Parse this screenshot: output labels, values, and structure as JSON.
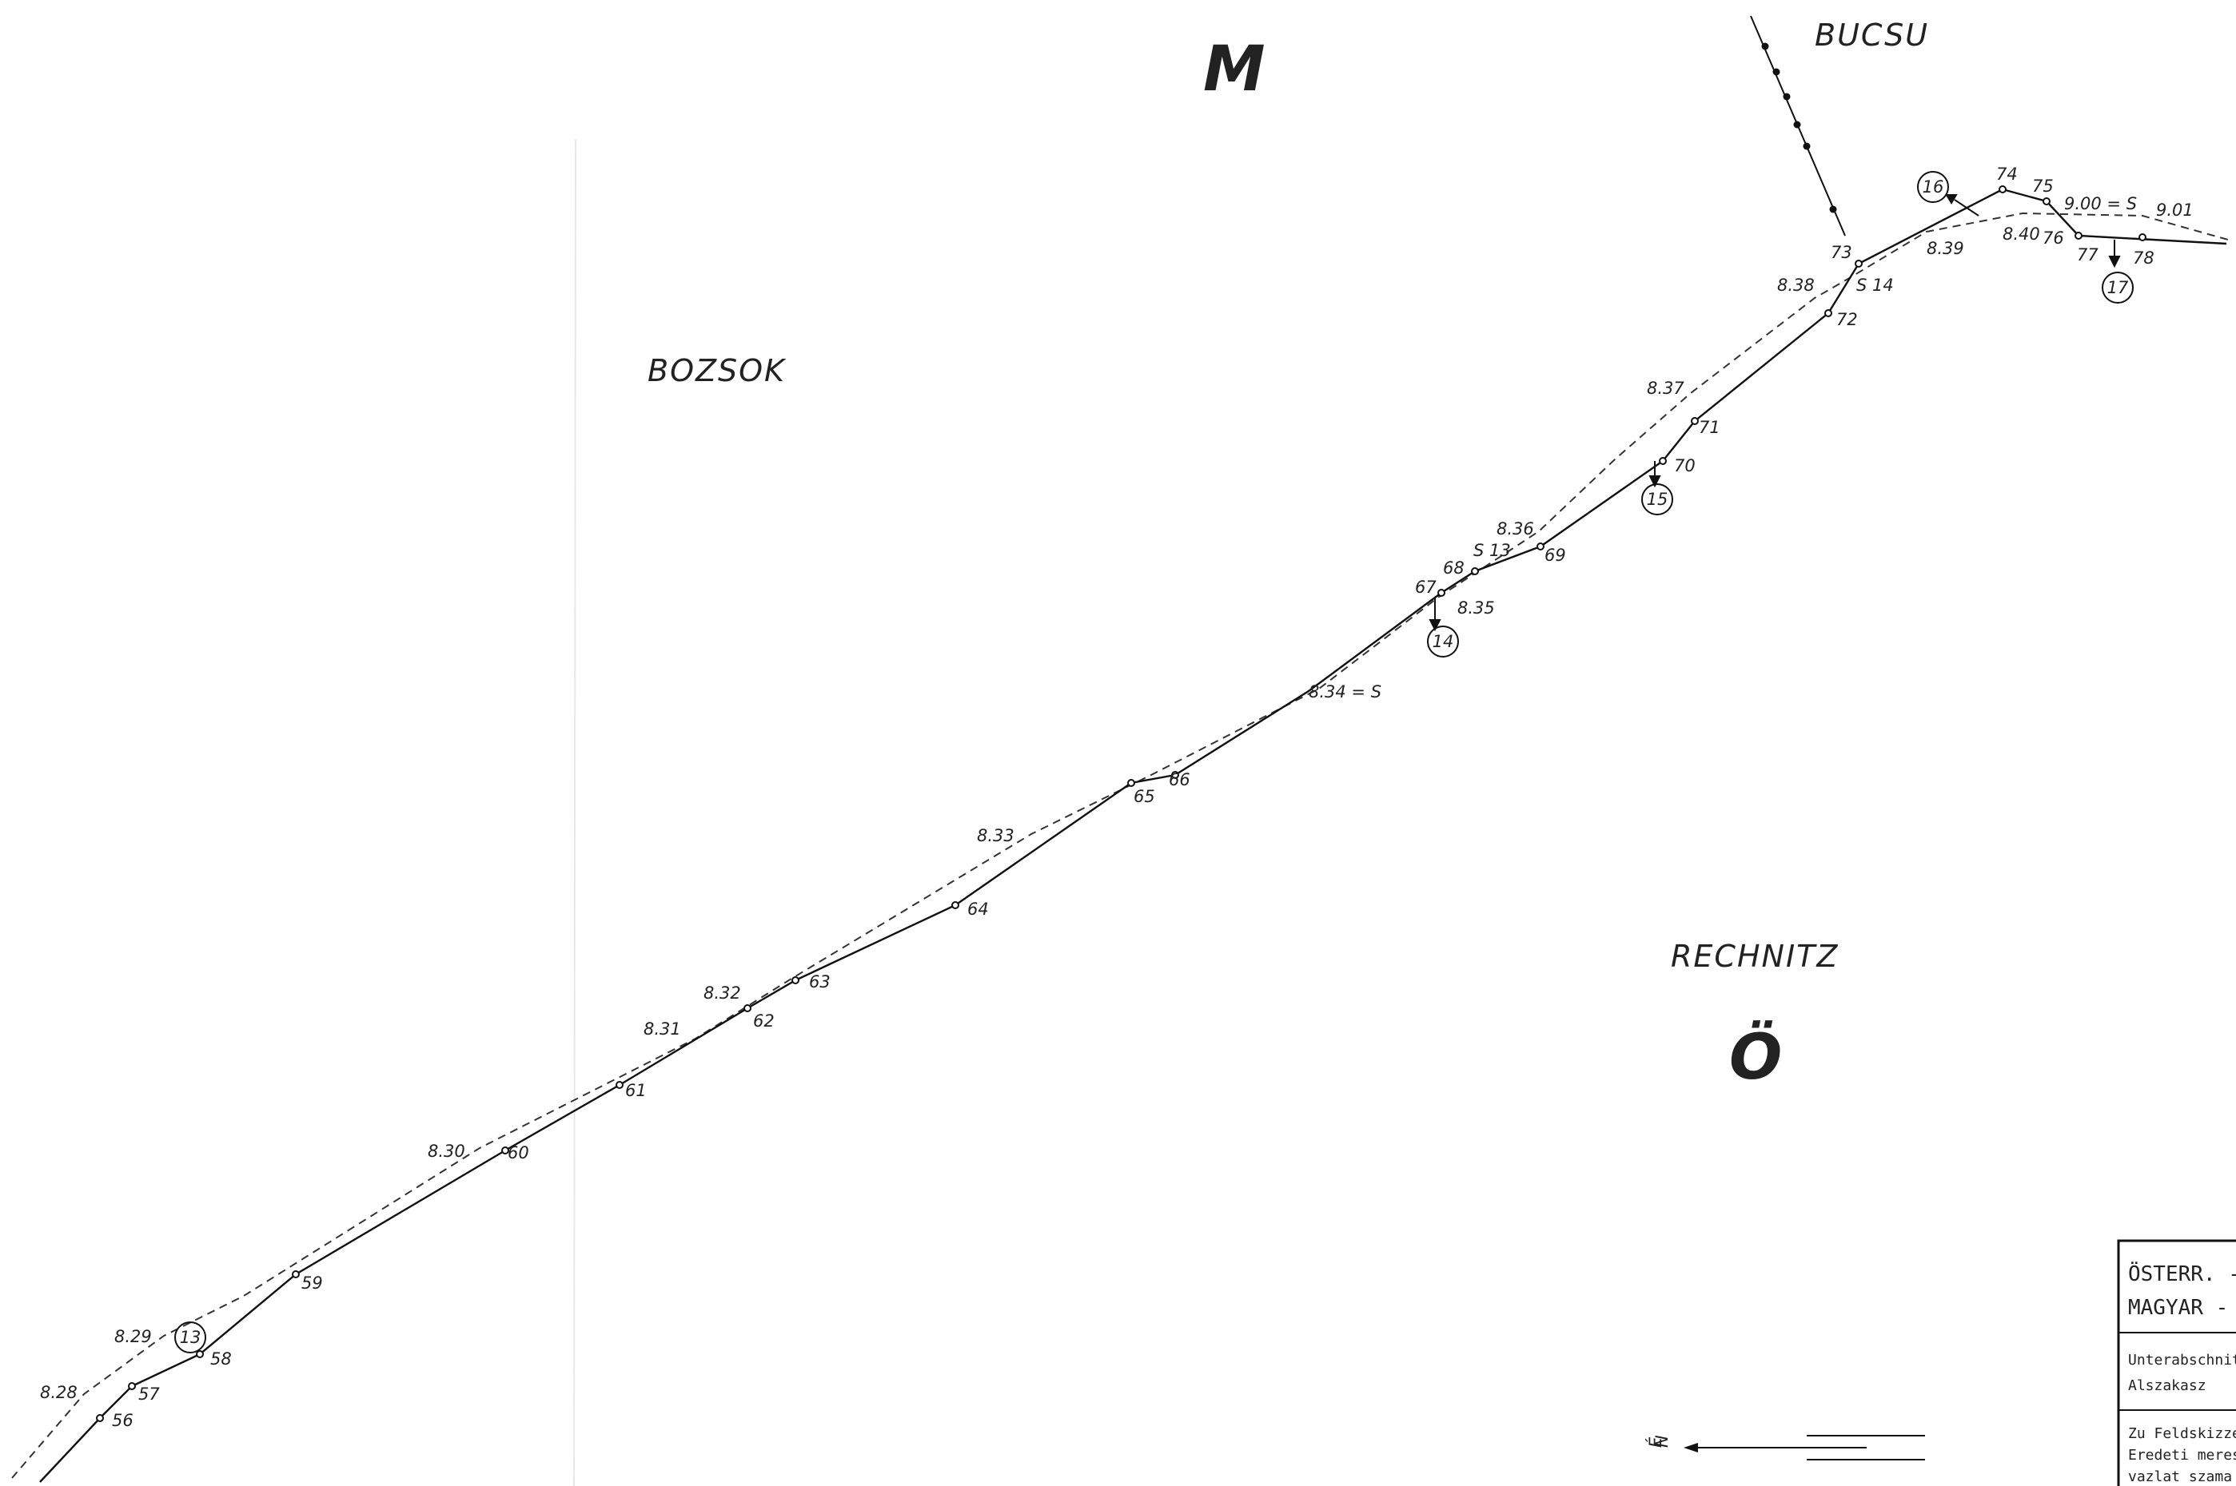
{
  "map": {
    "regions": {
      "top_left": "BOZSOK",
      "top_right": "BUCSU",
      "bottom_right": "RECHNITZ",
      "top_letter": "M",
      "bottom_letter": "Ö"
    },
    "point_labels": [
      "56",
      "57",
      "58",
      "59",
      "60",
      "61",
      "62",
      "63",
      "64",
      "65",
      "66",
      "67",
      "68",
      "69",
      "70",
      "71",
      "72",
      "73",
      "74",
      "75",
      "76",
      "77",
      "78"
    ],
    "stone_labels": [
      "8.28",
      "8.29",
      "8.30",
      "8.31",
      "8.32",
      "8.33",
      "8.34 = S",
      "8.35",
      "8.36",
      "S 13",
      "8.37",
      "8.38",
      "S 14",
      "8.39",
      "8.40",
      "9.00 = S",
      "9.01"
    ],
    "circled_markers": [
      "13",
      "14",
      "15",
      "16",
      "17"
    ],
    "north_arrow": {
      "label": "N",
      "side_label": "É"
    },
    "title_block": {
      "title_line1": "ÖSTERR. - U",
      "title_line2": "MAGYAR - O",
      "section_line1": "Unterabschnitt",
      "section_line2": "Alszakasz",
      "sketch_line1": "Zu Feldskizze N",
      "sketch_line2": "Eredeti meresi",
      "sketch_line3": "vazlat szama"
    },
    "colors": {
      "ink": "#222222",
      "paper": "#ffffff"
    }
  }
}
